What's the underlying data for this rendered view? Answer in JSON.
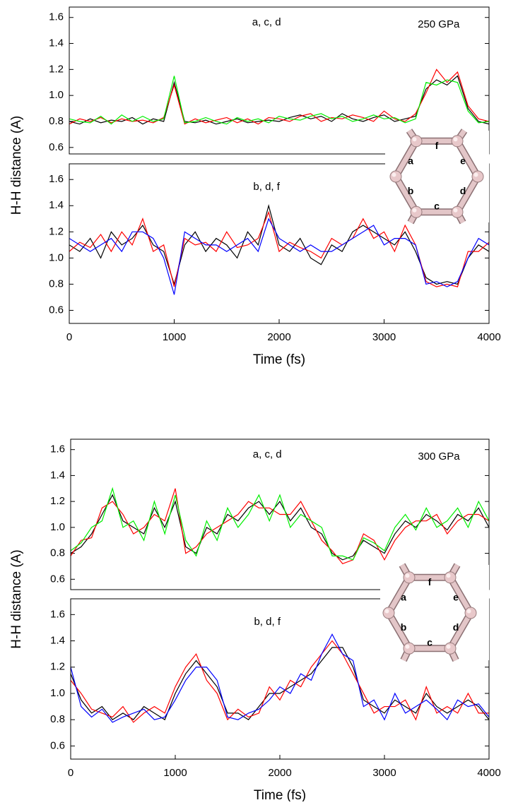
{
  "chart_data": [
    {
      "type": "line",
      "annotations": [
        "a, c, d",
        "250 GPa"
      ],
      "xlim": [
        0,
        4000
      ],
      "ylim": [
        0.55,
        1.68
      ],
      "yticks": [
        0.6,
        0.8,
        {
          "value": 1,
          "label": "1.0"
        },
        1.2,
        1.4,
        1.6
      ],
      "hexagon_labels": [
        "a",
        "b",
        "c",
        "d",
        "e",
        "f"
      ],
      "x": [
        0,
        100,
        200,
        300,
        400,
        500,
        600,
        700,
        800,
        900,
        1000,
        1100,
        1200,
        1300,
        1400,
        1500,
        1600,
        1700,
        1800,
        1900,
        2000,
        2100,
        2200,
        2300,
        2400,
        2500,
        2600,
        2700,
        2800,
        2900,
        3000,
        3100,
        3200,
        3300,
        3400,
        3500,
        3600,
        3700,
        3800,
        3900,
        4000
      ],
      "series": [
        {
          "color": "#000000",
          "values": [
            0.8,
            0.78,
            0.82,
            0.79,
            0.81,
            0.8,
            0.83,
            0.78,
            0.82,
            0.8,
            1.1,
            0.8,
            0.79,
            0.81,
            0.78,
            0.8,
            0.82,
            0.79,
            0.8,
            0.81,
            0.8,
            0.83,
            0.85,
            0.82,
            0.84,
            0.8,
            0.86,
            0.82,
            0.8,
            0.83,
            0.85,
            0.8,
            0.82,
            0.84,
            1.05,
            1.12,
            1.08,
            1.15,
            0.9,
            0.8,
            0.78
          ]
        },
        {
          "color": "#ff0000",
          "values": [
            0.78,
            0.82,
            0.8,
            0.83,
            0.79,
            0.82,
            0.8,
            0.81,
            0.79,
            0.83,
            1.08,
            0.78,
            0.82,
            0.79,
            0.81,
            0.83,
            0.79,
            0.82,
            0.78,
            0.83,
            0.82,
            0.8,
            0.84,
            0.86,
            0.8,
            0.83,
            0.82,
            0.85,
            0.83,
            0.8,
            0.88,
            0.82,
            0.8,
            0.86,
            1.02,
            1.2,
            1.1,
            1.18,
            0.92,
            0.82,
            0.8
          ]
        },
        {
          "color": "#00ee00",
          "values": [
            0.82,
            0.8,
            0.79,
            0.84,
            0.78,
            0.85,
            0.8,
            0.84,
            0.8,
            0.82,
            1.15,
            0.79,
            0.8,
            0.83,
            0.8,
            0.78,
            0.83,
            0.8,
            0.82,
            0.79,
            0.84,
            0.82,
            0.81,
            0.84,
            0.86,
            0.82,
            0.84,
            0.8,
            0.82,
            0.85,
            0.82,
            0.83,
            0.79,
            0.82,
            1.1,
            1.08,
            1.12,
            1.1,
            0.88,
            0.79,
            0.8
          ]
        }
      ]
    },
    {
      "type": "line",
      "annotations": [
        "b, d, f"
      ],
      "ylabel": "H-H distance (A)",
      "xlabel": "Time (fs)",
      "xlim": [
        0,
        4000
      ],
      "ylim": [
        0.5,
        1.72
      ],
      "xticks": [
        0,
        1000,
        2000,
        3000,
        4000
      ],
      "yticks": [
        0.6,
        0.8,
        {
          "value": 1,
          "label": "1.0"
        },
        1.2,
        1.4,
        1.6
      ],
      "x": [
        0,
        100,
        200,
        300,
        400,
        500,
        600,
        700,
        800,
        900,
        1000,
        1100,
        1200,
        1300,
        1400,
        1500,
        1600,
        1700,
        1800,
        1900,
        2000,
        2100,
        2200,
        2300,
        2400,
        2500,
        2600,
        2700,
        2800,
        2900,
        3000,
        3100,
        3200,
        3300,
        3400,
        3500,
        3600,
        3700,
        3800,
        3900,
        4000
      ],
      "series": [
        {
          "color": "#000000",
          "values": [
            1.1,
            1.05,
            1.15,
            1.0,
            1.2,
            1.1,
            1.15,
            1.25,
            1.1,
            1.05,
            0.8,
            1.1,
            1.2,
            1.05,
            1.15,
            1.1,
            1.0,
            1.2,
            1.1,
            1.4,
            1.1,
            1.05,
            1.15,
            1.0,
            0.95,
            1.1,
            1.05,
            1.2,
            1.25,
            1.2,
            1.15,
            1.1,
            1.2,
            1.05,
            0.85,
            0.8,
            0.82,
            0.8,
            1.0,
            1.1,
            1.05
          ]
        },
        {
          "color": "#ff0000",
          "values": [
            1.05,
            1.12,
            1.08,
            1.18,
            1.05,
            1.2,
            1.1,
            1.3,
            1.05,
            1.1,
            0.78,
            1.15,
            1.1,
            1.12,
            1.05,
            1.2,
            1.08,
            1.1,
            1.15,
            1.35,
            1.05,
            1.12,
            1.08,
            1.05,
            1.0,
            1.15,
            1.1,
            1.15,
            1.3,
            1.15,
            1.2,
            1.05,
            1.25,
            1.1,
            0.82,
            0.78,
            0.8,
            0.78,
            1.05,
            1.05,
            1.12
          ]
        },
        {
          "color": "#0000ff",
          "values": [
            1.15,
            1.1,
            1.05,
            1.1,
            1.15,
            1.05,
            1.2,
            1.2,
            1.15,
            1.0,
            0.72,
            1.2,
            1.15,
            1.1,
            1.1,
            1.05,
            1.1,
            1.15,
            1.05,
            1.3,
            1.15,
            1.1,
            1.05,
            1.1,
            1.05,
            1.05,
            1.1,
            1.15,
            1.2,
            1.25,
            1.1,
            1.15,
            1.15,
            1.1,
            0.8,
            0.82,
            0.78,
            0.82,
            1.0,
            1.15,
            1.1
          ]
        }
      ]
    },
    {
      "type": "line",
      "annotations": [
        "a, c, d",
        "300 GPa"
      ],
      "xlim": [
        0,
        4000
      ],
      "ylim": [
        0.52,
        1.68
      ],
      "yticks": [
        0.6,
        0.8,
        {
          "value": 1,
          "label": "1.0"
        },
        1.2,
        1.4,
        1.6
      ],
      "hexagon_labels": [
        "a",
        "b",
        "c",
        "d",
        "e",
        "f"
      ],
      "x": [
        0,
        100,
        200,
        300,
        400,
        500,
        600,
        700,
        800,
        900,
        1000,
        1100,
        1200,
        1300,
        1400,
        1500,
        1600,
        1700,
        1800,
        1900,
        2000,
        2100,
        2200,
        2300,
        2400,
        2500,
        2600,
        2700,
        2800,
        2900,
        3000,
        3100,
        3200,
        3300,
        3400,
        3500,
        3600,
        3700,
        3800,
        3900,
        4000
      ],
      "series": [
        {
          "color": "#000000",
          "values": [
            0.8,
            0.85,
            0.95,
            1.1,
            1.25,
            1.05,
            1.0,
            0.95,
            1.15,
            1.0,
            1.2,
            0.85,
            0.8,
            1.0,
            0.95,
            1.1,
            1.05,
            1.15,
            1.2,
            1.1,
            1.2,
            1.05,
            1.15,
            1.0,
            0.95,
            0.8,
            0.75,
            0.78,
            0.9,
            0.85,
            0.8,
            0.95,
            1.05,
            1.0,
            1.1,
            1.05,
            0.98,
            1.1,
            1.05,
            1.15,
            1.0
          ]
        },
        {
          "color": "#ff0000",
          "values": [
            0.78,
            0.9,
            0.92,
            1.15,
            1.2,
            1.1,
            0.95,
            1.0,
            1.1,
            1.05,
            1.3,
            0.8,
            0.85,
            0.95,
            1.0,
            1.05,
            1.1,
            1.2,
            1.15,
            1.15,
            1.1,
            1.1,
            1.2,
            1.05,
            0.9,
            0.82,
            0.72,
            0.75,
            0.95,
            0.9,
            0.75,
            0.9,
            1.0,
            1.05,
            1.05,
            1.1,
            0.95,
            1.05,
            1.1,
            1.1,
            1.05
          ]
        },
        {
          "color": "#00ee00",
          "values": [
            0.82,
            0.88,
            1.0,
            1.05,
            1.3,
            1.0,
            1.05,
            0.9,
            1.2,
            0.95,
            1.25,
            0.9,
            0.78,
            1.05,
            0.9,
            1.15,
            1.0,
            1.1,
            1.25,
            1.05,
            1.25,
            1.0,
            1.1,
            1.05,
            1.0,
            0.78,
            0.78,
            0.75,
            0.92,
            0.88,
            0.82,
            1.0,
            1.1,
            0.98,
            1.15,
            1.0,
            1.05,
            1.15,
            1.0,
            1.2,
            1.05
          ]
        }
      ]
    },
    {
      "type": "line",
      "annotations": [
        "b, d, f"
      ],
      "ylabel": "H-H distance (A)",
      "xlabel": "Time (fs)",
      "xlim": [
        0,
        4000
      ],
      "ylim": [
        0.5,
        1.72
      ],
      "xticks": [
        0,
        1000,
        2000,
        3000,
        4000
      ],
      "yticks": [
        0.6,
        0.8,
        {
          "value": 1,
          "label": "1.0"
        },
        1.2,
        1.4,
        1.6
      ],
      "x": [
        0,
        100,
        200,
        300,
        400,
        500,
        600,
        700,
        800,
        900,
        1000,
        1100,
        1200,
        1300,
        1400,
        1500,
        1600,
        1700,
        1800,
        1900,
        2000,
        2100,
        2200,
        2300,
        2400,
        2500,
        2600,
        2700,
        2800,
        2900,
        3000,
        3100,
        3200,
        3300,
        3400,
        3500,
        3600,
        3700,
        3800,
        3900,
        4000
      ],
      "series": [
        {
          "color": "#000000",
          "values": [
            1.15,
            0.95,
            0.85,
            0.9,
            0.8,
            0.85,
            0.8,
            0.9,
            0.85,
            0.8,
            1.0,
            1.15,
            1.25,
            1.15,
            1.05,
            0.85,
            0.85,
            0.8,
            0.9,
            1.0,
            1.0,
            1.05,
            1.1,
            1.15,
            1.25,
            1.35,
            1.35,
            1.2,
            0.95,
            0.9,
            0.85,
            0.95,
            0.9,
            0.85,
            1.0,
            0.9,
            0.85,
            0.9,
            0.95,
            0.9,
            0.8
          ]
        },
        {
          "color": "#ff0000",
          "values": [
            1.1,
            1.0,
            0.88,
            0.85,
            0.82,
            0.9,
            0.78,
            0.85,
            0.9,
            0.85,
            1.05,
            1.2,
            1.3,
            1.1,
            1.0,
            0.8,
            0.88,
            0.82,
            0.85,
            1.05,
            0.95,
            1.1,
            1.05,
            1.2,
            1.3,
            1.4,
            1.3,
            1.15,
            1.0,
            0.85,
            0.9,
            0.9,
            0.95,
            0.8,
            1.05,
            0.85,
            0.9,
            0.85,
            1.0,
            0.85,
            0.85
          ]
        },
        {
          "color": "#0000ff",
          "values": [
            1.2,
            0.9,
            0.82,
            0.88,
            0.78,
            0.82,
            0.85,
            0.88,
            0.8,
            0.82,
            0.95,
            1.1,
            1.2,
            1.2,
            1.1,
            0.82,
            0.8,
            0.85,
            0.88,
            0.95,
            1.05,
            1.0,
            1.15,
            1.1,
            1.3,
            1.45,
            1.3,
            1.25,
            0.9,
            0.95,
            0.8,
            1.0,
            0.85,
            0.9,
            0.95,
            0.88,
            0.8,
            0.95,
            0.9,
            0.92,
            0.82
          ]
        }
      ]
    }
  ]
}
